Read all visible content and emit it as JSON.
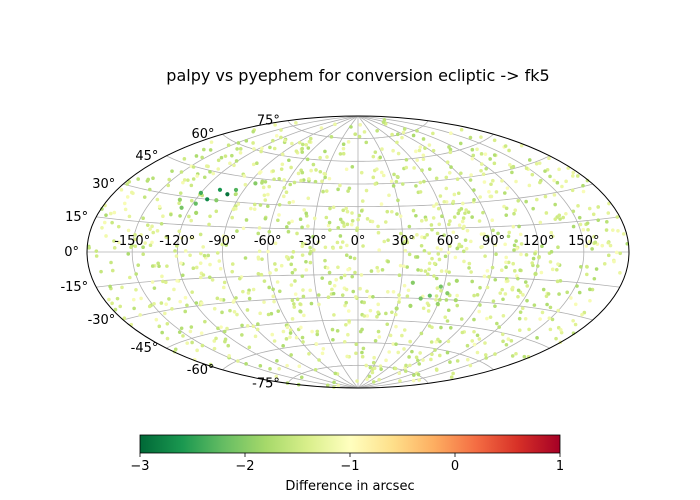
{
  "chart_data": {
    "type": "scatter",
    "projection": "aitoff",
    "title": "palpy vs pyephem for conversion ecliptic -> fk5",
    "grid": true,
    "x_ticks": [
      "-150°",
      "-120°",
      "-90°",
      "-60°",
      "-30°",
      "0°",
      "30°",
      "60°",
      "90°",
      "120°",
      "150°"
    ],
    "y_ticks": [
      "-75°",
      "-60°",
      "-45°",
      "-30°",
      "-15°",
      "0°",
      "15°",
      "30°",
      "45°",
      "60°",
      "75°"
    ],
    "colorbar": {
      "label": "Difference in arcsec",
      "colormap": "RdYlGn_r",
      "range": [
        -3,
        1
      ],
      "ticks": [
        "−3",
        "−2",
        "−1",
        "0",
        "1"
      ]
    },
    "series": [
      {
        "note_points": [
          {
            "lon": -120,
            "lat": 33,
            "value": -2.4
          },
          {
            "lon": -112,
            "lat": 30,
            "value": -2.7
          },
          {
            "lon": -108,
            "lat": 36,
            "value": -2.6
          },
          {
            "lon": -100,
            "lat": 34,
            "value": -2.9
          },
          {
            "lon": -96,
            "lat": 37,
            "value": -2.3
          },
          {
            "lon": -126,
            "lat": 24,
            "value": -2.1
          },
          {
            "lon": -118,
            "lat": 27,
            "value": -2.2
          },
          {
            "lon": -105,
            "lat": 30,
            "value": -2.0
          },
          {
            "lon": -131,
            "lat": 28,
            "value": -1.9
          },
          {
            "lon": -114,
            "lat": 22,
            "value": -1.8
          },
          {
            "lon": -85,
            "lat": 42,
            "value": -2.0
          },
          {
            "lon": 38,
            "lat": -20,
            "value": -2.0
          },
          {
            "lon": 46,
            "lat": -30,
            "value": -2.1
          },
          {
            "lon": 52,
            "lat": -28,
            "value": -2.2
          },
          {
            "lon": 58,
            "lat": -22,
            "value": -2.1
          },
          {
            "lon": 64,
            "lat": -26,
            "value": -2.0
          },
          {
            "lon": 60,
            "lat": -33,
            "value": -1.9
          },
          {
            "lon": 68,
            "lat": -18,
            "value": -1.8
          },
          {
            "lon": 72,
            "lat": -30,
            "value": -1.8
          },
          {
            "lon": 40,
            "lat": -35,
            "value": -1.8
          },
          {
            "lon": 30,
            "lat": -37,
            "value": -1.7
          },
          {
            "lon": 120,
            "lat": -12,
            "value": -1.6
          }
        ]
      }
    ]
  }
}
